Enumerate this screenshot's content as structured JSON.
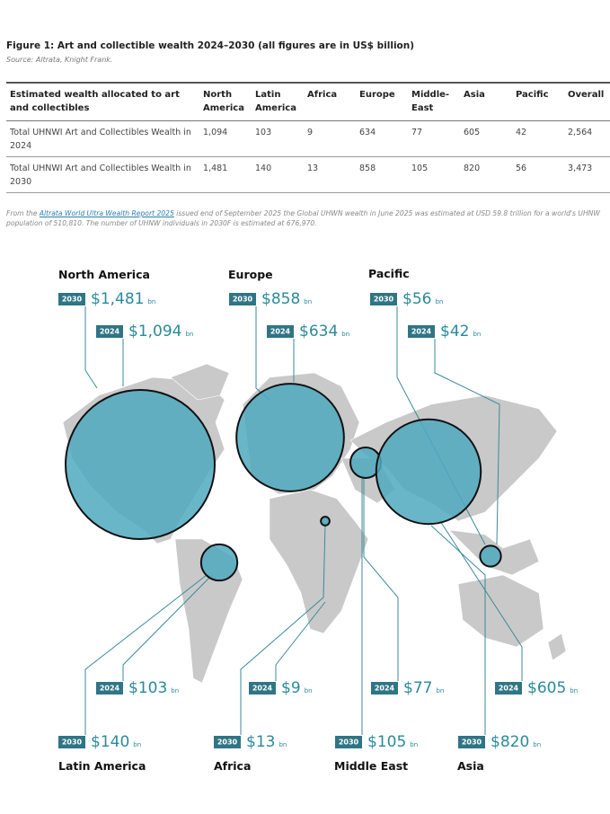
{
  "figure": {
    "title": "Figure 1: Art and collectible wealth 2024–2030 (all figures are in US$ billion)",
    "source": "Source: Altrata, Knight Frank."
  },
  "table": {
    "header": [
      "Estimated wealth allocated to art and collectibles",
      "North America",
      "Latin America",
      "Africa",
      "Europe",
      "Middle-East",
      "Asia",
      "Pacific",
      "Overall"
    ],
    "rows": [
      [
        "Total UHNWI Art and Collectibles Wealth in 2024",
        "1,094",
        "103",
        "9",
        "634",
        "77",
        "605",
        "42",
        "2,564"
      ],
      [
        "Total UHNWI Art and Collectibles Wealth in 2030",
        "1,481",
        "140",
        "13",
        "858",
        "105",
        "820",
        "56",
        "3,473"
      ]
    ]
  },
  "note": {
    "before": "From the ",
    "link": "Altrata World Ultra Wealth Report 2025",
    "after": " issued end of September 2025 the Global UHWN wealth in June 2025 was estimated at USD 59.8 trillion for a world's UHNW population of 510,810. The number of UHNW individuals in 2030F is estimated at 676,970."
  },
  "map": {
    "year_2030": "2030",
    "year_2024": "2024",
    "unit": "bn",
    "regions": [
      {
        "name": "North America",
        "y2030": {
          "value": 1481,
          "label": "$1,481"
        },
        "y2024": {
          "value": 1094,
          "label": "$1,094"
        }
      },
      {
        "name": "Europe",
        "y2030": {
          "value": 858,
          "label": "$858"
        },
        "y2024": {
          "value": 634,
          "label": "$634"
        }
      },
      {
        "name": "Pacific",
        "y2030": {
          "value": 56,
          "label": "$56"
        },
        "y2024": {
          "value": 42,
          "label": "$42"
        }
      },
      {
        "name": "Latin America",
        "y2030": {
          "value": 140,
          "label": "$140"
        },
        "y2024": {
          "value": 103,
          "label": "$103"
        }
      },
      {
        "name": "Africa",
        "y2030": {
          "value": 13,
          "label": "$13"
        },
        "y2024": {
          "value": 9,
          "label": "$9"
        }
      },
      {
        "name": "Middle East",
        "y2030": {
          "value": 105,
          "label": "$105"
        },
        "y2024": {
          "value": 77,
          "label": "$77"
        }
      },
      {
        "name": "Asia",
        "y2030": {
          "value": 820,
          "label": "$820"
        },
        "y2024": {
          "value": 605,
          "label": "$605"
        }
      }
    ]
  }
}
